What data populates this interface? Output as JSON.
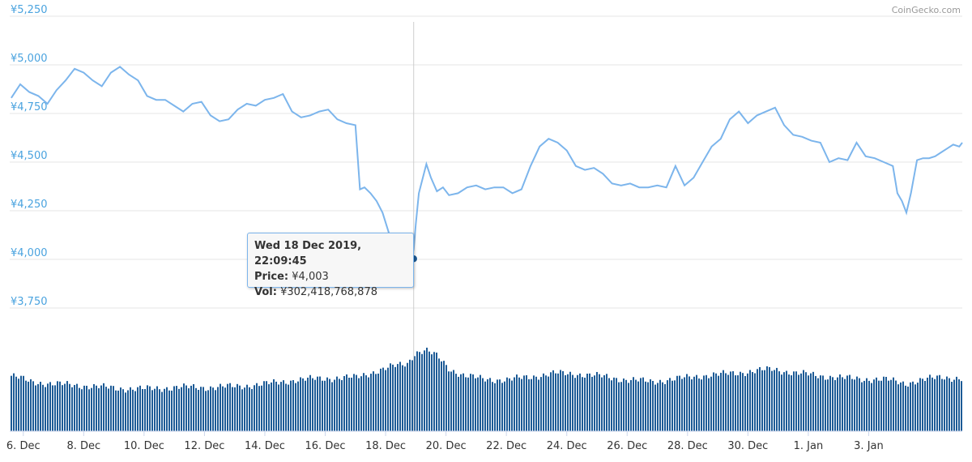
{
  "credit": "CoinGecko.com",
  "chart_data": {
    "type": "line",
    "price": {
      "ylim": [
        3750,
        5250
      ],
      "yticks": [
        {
          "value": 5250,
          "label": "¥5,250"
        },
        {
          "value": 5000,
          "label": "¥5,000"
        },
        {
          "value": 4750,
          "label": "¥4,750"
        },
        {
          "value": 4500,
          "label": "¥4,500"
        },
        {
          "value": 4250,
          "label": "¥4,250"
        },
        {
          "value": 4000,
          "label": "¥4,000"
        },
        {
          "value": 3750,
          "label": "¥3,750"
        }
      ],
      "color": "#7cb5ec",
      "x": [
        5.6,
        5.9,
        6.2,
        6.5,
        6.8,
        7.1,
        7.4,
        7.7,
        8.0,
        8.3,
        8.6,
        8.9,
        9.2,
        9.5,
        9.8,
        10.1,
        10.4,
        10.7,
        11.0,
        11.3,
        11.6,
        11.9,
        12.2,
        12.5,
        12.8,
        13.1,
        13.4,
        13.7,
        14.0,
        14.3,
        14.6,
        14.9,
        15.2,
        15.5,
        15.8,
        16.1,
        16.4,
        16.7,
        17.0,
        17.15,
        17.3,
        17.5,
        17.7,
        17.9,
        18.1,
        18.3,
        18.45,
        18.6,
        18.75,
        18.85,
        18.93,
        19.0,
        19.1,
        19.2,
        19.35,
        19.5,
        19.7,
        19.9,
        20.1,
        20.4,
        20.7,
        21.0,
        21.3,
        21.6,
        21.9,
        22.2,
        22.5,
        22.8,
        23.1,
        23.4,
        23.7,
        24.0,
        24.3,
        24.6,
        24.9,
        25.2,
        25.5,
        25.8,
        26.1,
        26.4,
        26.7,
        27.0,
        27.3,
        27.6,
        27.9,
        28.2,
        28.5,
        28.8,
        29.1,
        29.4,
        29.7,
        30.0,
        30.3,
        30.6,
        30.9,
        31.2,
        31.5,
        31.8,
        32.1,
        32.4,
        32.7,
        33.0,
        33.3,
        33.6,
        33.9,
        34.2,
        34.5,
        34.8,
        34.95,
        35.1,
        35.25,
        35.4,
        35.6,
        35.8,
        36.0,
        36.2,
        36.4,
        36.6,
        36.8,
        37.0,
        37.1
      ],
      "values": [
        4830,
        4900,
        4860,
        4840,
        4800,
        4870,
        4920,
        4980,
        4960,
        4920,
        4890,
        4960,
        4990,
        4950,
        4920,
        4840,
        4820,
        4820,
        4790,
        4760,
        4800,
        4810,
        4740,
        4710,
        4720,
        4770,
        4800,
        4790,
        4820,
        4830,
        4850,
        4760,
        4730,
        4740,
        4760,
        4770,
        4720,
        4700,
        4690,
        4360,
        4370,
        4340,
        4300,
        4240,
        4140,
        4050,
        4100,
        4060,
        4020,
        4003,
        4050,
        4180,
        4340,
        4400,
        4490,
        4420,
        4350,
        4370,
        4330,
        4340,
        4370,
        4380,
        4360,
        4370,
        4370,
        4340,
        4360,
        4480,
        4580,
        4620,
        4600,
        4560,
        4480,
        4460,
        4470,
        4440,
        4390,
        4380,
        4390,
        4370,
        4370,
        4380,
        4370,
        4480,
        4380,
        4420,
        4500,
        4580,
        4620,
        4720,
        4760,
        4700,
        4740,
        4760,
        4780,
        4690,
        4640,
        4630,
        4610,
        4600,
        4500,
        4520,
        4510,
        4600,
        4530,
        4520,
        4500,
        4480,
        4340,
        4300,
        4240,
        4340,
        4510,
        4520,
        4520,
        4530,
        4550,
        4570,
        4590,
        4580,
        4600
      ]
    },
    "volume": {
      "color": "#1d5b96",
      "x": [
        5.6,
        6.2,
        7.0,
        8.0,
        9.0,
        10.0,
        11.0,
        12.0,
        13.0,
        14.0,
        15.0,
        16.0,
        17.0,
        17.6,
        18.2,
        18.7,
        18.95,
        19.3,
        19.7,
        20.1,
        20.6,
        21.2,
        22.0,
        22.8,
        23.6,
        24.4,
        25.2,
        26.0,
        26.8,
        27.6,
        28.4,
        29.2,
        30.0,
        30.8,
        31.6,
        32.4,
        33.2,
        34.0,
        34.6,
        35.2,
        35.8,
        36.4,
        37.1
      ],
      "values": [
        0.67,
        0.6,
        0.57,
        0.55,
        0.52,
        0.51,
        0.53,
        0.53,
        0.54,
        0.57,
        0.62,
        0.64,
        0.65,
        0.72,
        0.78,
        0.82,
        0.95,
        0.98,
        0.9,
        0.75,
        0.67,
        0.63,
        0.62,
        0.66,
        0.7,
        0.69,
        0.66,
        0.62,
        0.6,
        0.63,
        0.67,
        0.69,
        0.72,
        0.75,
        0.7,
        0.67,
        0.64,
        0.63,
        0.62,
        0.58,
        0.62,
        0.66,
        0.63
      ]
    },
    "xlim": [
      5.55,
      37.1
    ],
    "xticks": [
      {
        "value": 6,
        "label": "6. Dec"
      },
      {
        "value": 8,
        "label": "8. Dec"
      },
      {
        "value": 10,
        "label": "10. Dec"
      },
      {
        "value": 12,
        "label": "12. Dec"
      },
      {
        "value": 14,
        "label": "14. Dec"
      },
      {
        "value": 16,
        "label": "16. Dec"
      },
      {
        "value": 18,
        "label": "18. Dec"
      },
      {
        "value": 20,
        "label": "20. Dec"
      },
      {
        "value": 22,
        "label": "22. Dec"
      },
      {
        "value": 24,
        "label": "24. Dec"
      },
      {
        "value": 26,
        "label": "26. Dec"
      },
      {
        "value": 28,
        "label": "28. Dec"
      },
      {
        "value": 30,
        "label": "30. Dec"
      },
      {
        "value": 32,
        "label": "1. Jan"
      },
      {
        "value": 34,
        "label": "3. Jan"
      }
    ],
    "grid": true,
    "hover": {
      "x": 18.93,
      "price_value": 4003,
      "date": "Wed 18 Dec 2019, 22:09:45",
      "price_label": "Price:",
      "price_text": "¥4,003",
      "vol_label": "Vol:",
      "vol_text": "¥302,418,768,878"
    }
  }
}
